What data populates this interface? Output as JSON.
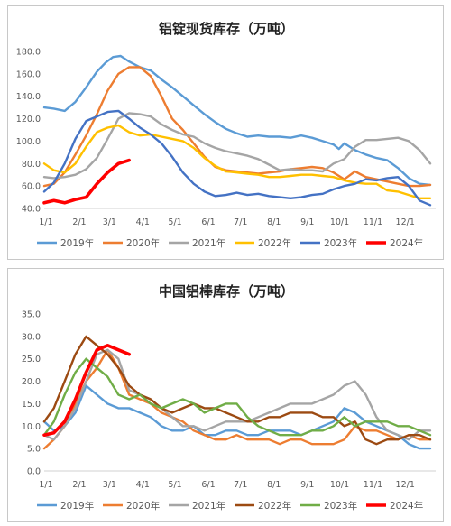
{
  "chart_data": [
    {
      "type": "line",
      "title": "铝锭现货库存（万吨）",
      "x_ticks": [
        "1/1",
        "2/1",
        "3/1",
        "4/1",
        "5/1",
        "6/1",
        "7/1",
        "8/1",
        "9/1",
        "10/1",
        "11/1",
        "12/1"
      ],
      "ylim": [
        40,
        180
      ],
      "y_ticks": [
        "40.0",
        "60.0",
        "80.0",
        "100.0",
        "120.0",
        "140.0",
        "160.0",
        "180.0"
      ],
      "grid": false,
      "legend_position": "bottom",
      "series": [
        {
          "name": "2019年",
          "color": "#5B9BD5",
          "x": [
            1,
            10,
            20,
            30,
            40,
            50,
            58,
            65,
            72,
            80,
            90,
            100,
            110,
            120,
            130,
            140,
            150,
            160,
            170,
            180,
            190,
            200,
            210,
            220,
            230,
            240,
            250,
            260,
            270,
            275,
            280,
            290,
            300,
            310,
            320,
            330,
            340,
            350,
            360
          ],
          "y": [
            130,
            129,
            127,
            135,
            148,
            162,
            170,
            175,
            176,
            171,
            166,
            163,
            155,
            148,
            140,
            132,
            124,
            117,
            111,
            107,
            104,
            105,
            104,
            104,
            103,
            105,
            103,
            100,
            97,
            93,
            98,
            92,
            88,
            85,
            83,
            76,
            67,
            62,
            61
          ]
        },
        {
          "name": "2020年",
          "color": "#ED7D31",
          "x": [
            1,
            10,
            20,
            30,
            40,
            50,
            60,
            70,
            80,
            90,
            100,
            110,
            120,
            130,
            140,
            150,
            160,
            170,
            180,
            190,
            200,
            210,
            220,
            230,
            240,
            250,
            260,
            270,
            280,
            290,
            300,
            310,
            320,
            330,
            340,
            350,
            360
          ],
          "y": [
            60,
            62,
            72,
            88,
            105,
            124,
            145,
            160,
            166,
            166,
            158,
            140,
            120,
            110,
            98,
            86,
            77,
            74,
            73,
            72,
            71,
            72,
            73,
            75,
            76,
            77,
            76,
            72,
            66,
            73,
            68,
            66,
            64,
            62,
            60,
            60,
            61
          ]
        },
        {
          "name": "2021年",
          "color": "#A5A5A5",
          "x": [
            1,
            10,
            20,
            30,
            40,
            50,
            60,
            70,
            80,
            90,
            100,
            110,
            120,
            130,
            140,
            150,
            160,
            170,
            180,
            190,
            200,
            210,
            220,
            230,
            240,
            250,
            260,
            270,
            280,
            290,
            300,
            310,
            320,
            330,
            340,
            350,
            360
          ],
          "y": [
            68,
            67,
            68,
            70,
            75,
            85,
            102,
            120,
            125,
            124,
            122,
            115,
            110,
            106,
            104,
            98,
            94,
            91,
            89,
            87,
            84,
            79,
            74,
            75,
            74,
            74,
            73,
            80,
            84,
            95,
            101,
            101,
            102,
            103,
            100,
            92,
            80
          ]
        },
        {
          "name": "2022年",
          "color": "#FFC000",
          "x": [
            1,
            10,
            20,
            30,
            40,
            50,
            60,
            70,
            80,
            90,
            100,
            110,
            120,
            130,
            140,
            150,
            160,
            170,
            180,
            190,
            200,
            210,
            220,
            230,
            240,
            250,
            260,
            270,
            280,
            290,
            300,
            310,
            320,
            330,
            340,
            350,
            360
          ],
          "y": [
            80,
            74,
            72,
            80,
            95,
            108,
            112,
            114,
            108,
            105,
            106,
            104,
            102,
            100,
            94,
            85,
            78,
            73,
            72,
            71,
            70,
            68,
            68,
            69,
            70,
            70,
            69,
            68,
            65,
            63,
            62,
            62,
            56,
            55,
            52,
            49,
            49
          ]
        },
        {
          "name": "2023年",
          "color": "#4472C4",
          "x": [
            1,
            10,
            20,
            30,
            40,
            50,
            60,
            70,
            80,
            90,
            100,
            110,
            120,
            130,
            140,
            150,
            160,
            170,
            180,
            190,
            200,
            210,
            220,
            230,
            240,
            250,
            260,
            270,
            280,
            290,
            300,
            310,
            320,
            330,
            340,
            350,
            360
          ],
          "y": [
            55,
            63,
            80,
            102,
            118,
            122,
            126,
            127,
            120,
            112,
            106,
            98,
            86,
            72,
            62,
            55,
            51,
            52,
            54,
            52,
            53,
            51,
            50,
            49,
            50,
            52,
            53,
            57,
            60,
            62,
            66,
            65,
            67,
            68,
            60,
            47,
            43
          ]
        },
        {
          "name": "2024年",
          "color": "#FF0000",
          "x": [
            1,
            10,
            20,
            30,
            40,
            50,
            60,
            70,
            80
          ],
          "y": [
            45,
            47,
            45,
            48,
            50,
            62,
            72,
            80,
            83
          ]
        }
      ]
    },
    {
      "type": "line",
      "title": "中国铝棒库存（万吨）",
      "x_ticks": [
        "1/1",
        "2/1",
        "3/1",
        "4/1",
        "5/1",
        "6/1",
        "7/1",
        "8/1",
        "9/1",
        "10/1",
        "11/1",
        "12/1"
      ],
      "ylim": [
        0,
        35
      ],
      "y_ticks": [
        "0.0",
        "5.0",
        "10.0",
        "15.0",
        "20.0",
        "25.0",
        "30.0",
        "35.0"
      ],
      "grid": false,
      "legend_position": "bottom",
      "series": [
        {
          "name": "2019年",
          "color": "#5B9BD5",
          "x": [
            1,
            10,
            20,
            30,
            40,
            50,
            60,
            70,
            80,
            90,
            100,
            110,
            120,
            130,
            140,
            150,
            160,
            170,
            180,
            190,
            200,
            210,
            220,
            230,
            240,
            250,
            260,
            270,
            280,
            290,
            300,
            310,
            320,
            330,
            340,
            350,
            360
          ],
          "y": [
            11,
            9,
            10,
            13,
            19,
            17,
            15,
            14,
            14,
            13,
            12,
            10,
            9,
            9,
            10,
            8,
            8,
            9,
            9,
            8,
            8,
            9,
            9,
            9,
            8,
            9,
            10,
            11,
            14,
            13,
            11,
            10,
            9,
            8,
            6,
            5,
            5
          ]
        },
        {
          "name": "2020年",
          "color": "#ED7D31",
          "x": [
            1,
            10,
            20,
            30,
            40,
            50,
            60,
            70,
            80,
            90,
            100,
            110,
            120,
            130,
            140,
            150,
            160,
            170,
            180,
            190,
            200,
            210,
            220,
            230,
            240,
            250,
            260,
            270,
            280,
            290,
            300,
            310,
            320,
            330,
            340,
            350,
            360
          ],
          "y": [
            5,
            7,
            10,
            15,
            20,
            23,
            27,
            23,
            17,
            16,
            15,
            13,
            12,
            11,
            9,
            8,
            7,
            7,
            8,
            7,
            7,
            7,
            6,
            7,
            7,
            6,
            6,
            6,
            7,
            10,
            9,
            9,
            8,
            7,
            8,
            7,
            7
          ]
        },
        {
          "name": "2021年",
          "color": "#A5A5A5",
          "x": [
            1,
            10,
            20,
            30,
            40,
            50,
            60,
            70,
            80,
            90,
            100,
            110,
            120,
            130,
            140,
            150,
            160,
            170,
            180,
            190,
            200,
            210,
            220,
            230,
            240,
            250,
            260,
            270,
            280,
            290,
            300,
            310,
            320,
            330,
            340,
            350,
            360
          ],
          "y": [
            8,
            7,
            10,
            14,
            20,
            26,
            27,
            25,
            18,
            17,
            16,
            14,
            12,
            10,
            10,
            9,
            10,
            11,
            11,
            11,
            12,
            13,
            14,
            15,
            15,
            15,
            16,
            17,
            19,
            20,
            17,
            12,
            9,
            8,
            7,
            9,
            9
          ]
        },
        {
          "name": "2022年",
          "color": "#9C4A12",
          "x": [
            1,
            10,
            20,
            30,
            40,
            50,
            60,
            70,
            80,
            90,
            100,
            110,
            120,
            130,
            140,
            150,
            160,
            170,
            180,
            190,
            200,
            210,
            220,
            230,
            240,
            250,
            260,
            270,
            280,
            290,
            300,
            310,
            320,
            330,
            340,
            350,
            360
          ],
          "y": [
            11,
            14,
            20,
            26,
            30,
            28,
            26,
            23,
            19,
            17,
            16,
            14,
            13,
            14,
            15,
            14,
            14,
            13,
            12,
            11,
            11,
            12,
            12,
            13,
            13,
            13,
            12,
            12,
            10,
            11,
            7,
            6,
            7,
            7,
            8,
            8,
            7
          ]
        },
        {
          "name": "2023年",
          "color": "#70AD47",
          "x": [
            1,
            10,
            20,
            30,
            40,
            50,
            60,
            70,
            80,
            90,
            100,
            110,
            120,
            130,
            140,
            150,
            160,
            170,
            180,
            190,
            200,
            210,
            220,
            230,
            240,
            250,
            260,
            270,
            280,
            290,
            300,
            310,
            320,
            330,
            340,
            350,
            360
          ],
          "y": [
            8,
            11,
            17,
            22,
            25,
            23,
            21,
            17,
            16,
            17,
            15,
            14,
            15,
            16,
            15,
            13,
            14,
            15,
            15,
            12,
            10,
            9,
            8,
            8,
            8,
            9,
            9,
            10,
            12,
            10,
            11,
            11,
            11,
            10,
            10,
            9,
            8
          ]
        },
        {
          "name": "2024年",
          "color": "#FF0000",
          "x": [
            1,
            10,
            20,
            30,
            40,
            50,
            60,
            70,
            80
          ],
          "y": [
            8,
            8.5,
            11,
            16,
            22,
            27,
            28,
            27,
            26
          ]
        }
      ]
    }
  ]
}
